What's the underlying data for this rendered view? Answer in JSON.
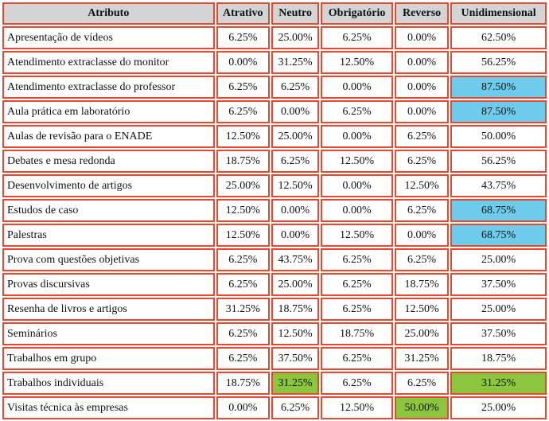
{
  "table": {
    "header": [
      "Atributo",
      "Atrativo",
      "Neutro",
      "Obrigatório",
      "Reverso",
      "Unidimensional"
    ],
    "rows": [
      [
        "Apresentação de vídeos",
        "6.25%",
        "25.00%",
        "6.25%",
        "0.00%",
        "62.50%"
      ],
      [
        "Atendimento extraclasse do monitor",
        "0.00%",
        "31.25%",
        "12.50%",
        "0.00%",
        "56.25%"
      ],
      [
        "Atendimento extraclasse do professor",
        "6.25%",
        "6.25%",
        "0.00%",
        "0.00%",
        "87.50%"
      ],
      [
        "Aula prática em laboratório",
        "6.25%",
        "0.00%",
        "6.25%",
        "0.00%",
        "87.50%"
      ],
      [
        "Aulas de revisão para o ENADE",
        "12.50%",
        "25.00%",
        "0.00%",
        "6.25%",
        "50.00%"
      ],
      [
        "Debates e mesa redonda",
        "18.75%",
        "6.25%",
        "12.50%",
        "6.25%",
        "56.25%"
      ],
      [
        "Desenvolvimento de artigos",
        "25.00%",
        "12.50%",
        "0.00%",
        "12.50%",
        "43.75%"
      ],
      [
        "Estudos de caso",
        "12.50%",
        "0.00%",
        "0.00%",
        "6.25%",
        "68.75%"
      ],
      [
        "Palestras",
        "12.50%",
        "0.00%",
        "12.50%",
        "0.00%",
        "68.75%"
      ],
      [
        "Prova com questões objetivas",
        "6.25%",
        "43.75%",
        "6.25%",
        "6.25%",
        "25.00%"
      ],
      [
        "Provas discursivas",
        "6.25%",
        "25.00%",
        "6.25%",
        "18.75%",
        "37.50%"
      ],
      [
        "Resenha de livros e artigos",
        "31.25%",
        "18.75%",
        "6.25%",
        "12.50%",
        "25.00%"
      ],
      [
        "Seminários",
        "6.25%",
        "12.50%",
        "18.75%",
        "25.00%",
        "37.50%"
      ],
      [
        "Trabalhos em grupo",
        "6.25%",
        "37.50%",
        "6.25%",
        "31.25%",
        "18.75%"
      ],
      [
        "Trabalhos individuais",
        "18.75%",
        "31.25%",
        "6.25%",
        "6.25%",
        "31.25%"
      ],
      [
        "Visitas técnica às empresas",
        "0.00%",
        "6.25%",
        "12.50%",
        "50.00%",
        "25.00%"
      ]
    ],
    "cell_colors": [
      {
        "row": 2,
        "col": 5,
        "color": "#6ecbeb"
      },
      {
        "row": 3,
        "col": 5,
        "color": "#6ecbeb"
      },
      {
        "row": 7,
        "col": 5,
        "color": "#6ecbeb"
      },
      {
        "row": 8,
        "col": 5,
        "color": "#6ecbeb"
      },
      {
        "row": 14,
        "col": 2,
        "color": "#8cc63f"
      },
      {
        "row": 14,
        "col": 5,
        "color": "#8cc63f"
      },
      {
        "row": 15,
        "col": 4,
        "color": "#8cc63f"
      }
    ]
  }
}
